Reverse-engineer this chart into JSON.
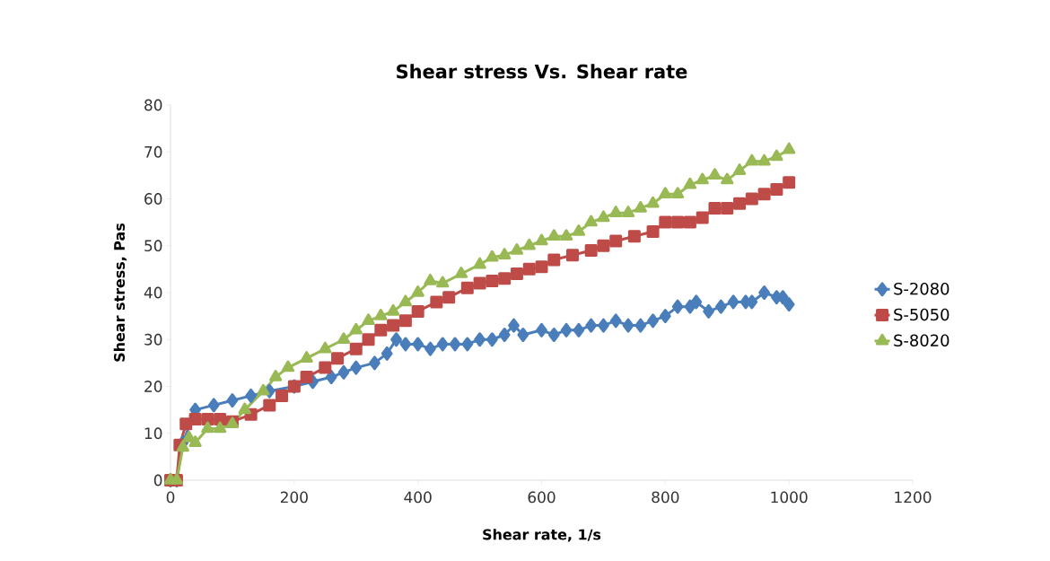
{
  "chart_data": {
    "type": "line",
    "title": "Shear stress Vs. Shear rate",
    "xlabel": "Shear rate, 1/s",
    "ylabel": "Shear stress, Pas",
    "xlim": [
      0,
      1200
    ],
    "xticks": [
      0,
      200,
      400,
      600,
      800,
      1000,
      1200
    ],
    "ylim": [
      0,
      80
    ],
    "yticks": [
      0,
      10,
      20,
      30,
      40,
      50,
      60,
      70,
      80
    ],
    "grid": false,
    "legend": "right",
    "line_style": "solid",
    "series": [
      {
        "name": "S-2080",
        "color": "#4a7ebb",
        "marker": "diamond",
        "x": [
          0,
          10,
          20,
          40,
          70,
          100,
          130,
          160,
          200,
          230,
          260,
          280,
          300,
          330,
          350,
          365,
          380,
          400,
          420,
          440,
          460,
          480,
          500,
          520,
          540,
          555,
          570,
          600,
          620,
          640,
          660,
          680,
          700,
          720,
          740,
          760,
          780,
          800,
          820,
          840,
          850,
          870,
          890,
          910,
          930,
          940,
          960,
          980,
          990,
          1000
        ],
        "values": [
          0,
          0,
          8,
          15,
          16,
          17,
          18,
          19,
          20,
          21,
          22,
          23,
          24,
          25,
          27,
          30,
          29,
          29,
          28,
          29,
          29,
          29,
          30,
          30,
          31,
          33,
          31,
          32,
          31,
          32,
          32,
          33,
          33,
          34,
          33,
          33,
          34,
          35,
          37,
          37,
          38,
          36,
          37,
          38,
          38,
          38,
          40,
          39,
          39,
          37.5
        ]
      },
      {
        "name": "S-5050",
        "color": "#be4b48",
        "marker": "square",
        "x": [
          0,
          10,
          15,
          25,
          40,
          60,
          80,
          100,
          130,
          160,
          180,
          200,
          220,
          250,
          270,
          300,
          320,
          340,
          360,
          380,
          400,
          430,
          450,
          480,
          500,
          520,
          540,
          560,
          580,
          600,
          620,
          650,
          680,
          700,
          720,
          750,
          780,
          800,
          820,
          840,
          860,
          880,
          900,
          920,
          940,
          960,
          980,
          1000
        ],
        "values": [
          0,
          0,
          7.5,
          12,
          13,
          13,
          13,
          12.5,
          14,
          16,
          18,
          20,
          22,
          24,
          26,
          28,
          30,
          32,
          33,
          34,
          36,
          38,
          39,
          41,
          42,
          42.5,
          43,
          44,
          45,
          45.5,
          47,
          48,
          49,
          50,
          51,
          52,
          53,
          55,
          55,
          55,
          56,
          58,
          58,
          59,
          60,
          61,
          62,
          63.5
        ]
      },
      {
        "name": "S-8020",
        "color": "#98b954",
        "marker": "triangle",
        "x": [
          0,
          10,
          20,
          30,
          40,
          60,
          80,
          100,
          120,
          150,
          170,
          190,
          220,
          250,
          280,
          300,
          320,
          340,
          360,
          380,
          400,
          420,
          440,
          470,
          500,
          520,
          540,
          560,
          580,
          600,
          620,
          640,
          660,
          680,
          700,
          720,
          740,
          760,
          780,
          800,
          820,
          840,
          860,
          880,
          900,
          920,
          940,
          960,
          980,
          1000
        ],
        "values": [
          0,
          0,
          7,
          9,
          8,
          11,
          11,
          12,
          15,
          19,
          22,
          24,
          26,
          28,
          30,
          32,
          34,
          35,
          36,
          38,
          40,
          42.5,
          42,
          44,
          46,
          47.5,
          48,
          49,
          50,
          51,
          52,
          52,
          53,
          55,
          56,
          57,
          57,
          58,
          59,
          61,
          61,
          63,
          64,
          65,
          64,
          66,
          68,
          68,
          69,
          70.5
        ]
      }
    ]
  }
}
